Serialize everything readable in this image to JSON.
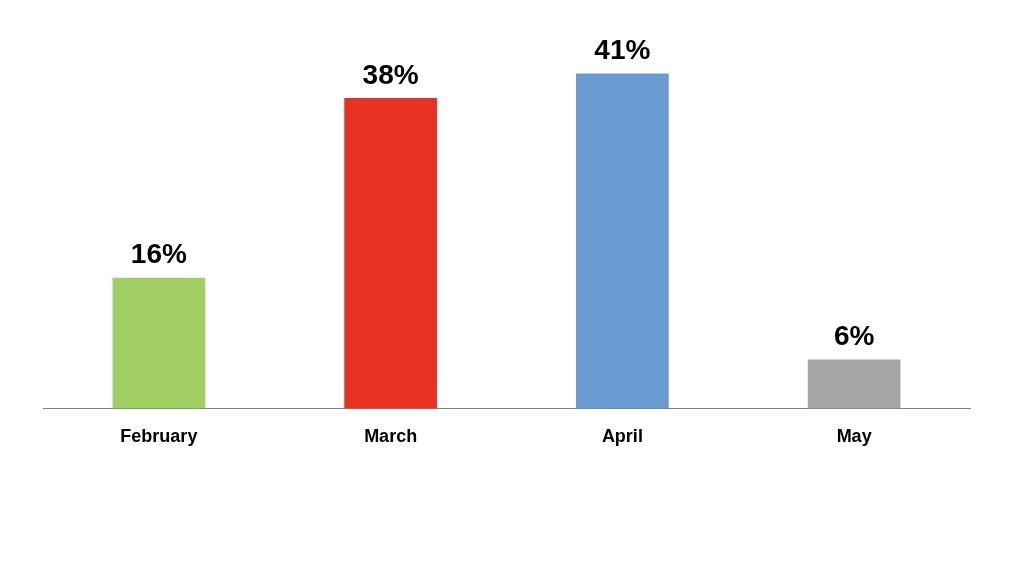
{
  "chart_data": {
    "type": "bar",
    "categories": [
      "February",
      "March",
      "April",
      "May"
    ],
    "values": [
      16,
      38,
      41,
      6
    ],
    "colors": [
      "#a1cf64",
      "#e83323",
      "#6a9bd1",
      "#a6a6a6"
    ],
    "value_labels": [
      "16%",
      "38%",
      "41%",
      "6%"
    ],
    "grid": false,
    "legend": false
  }
}
